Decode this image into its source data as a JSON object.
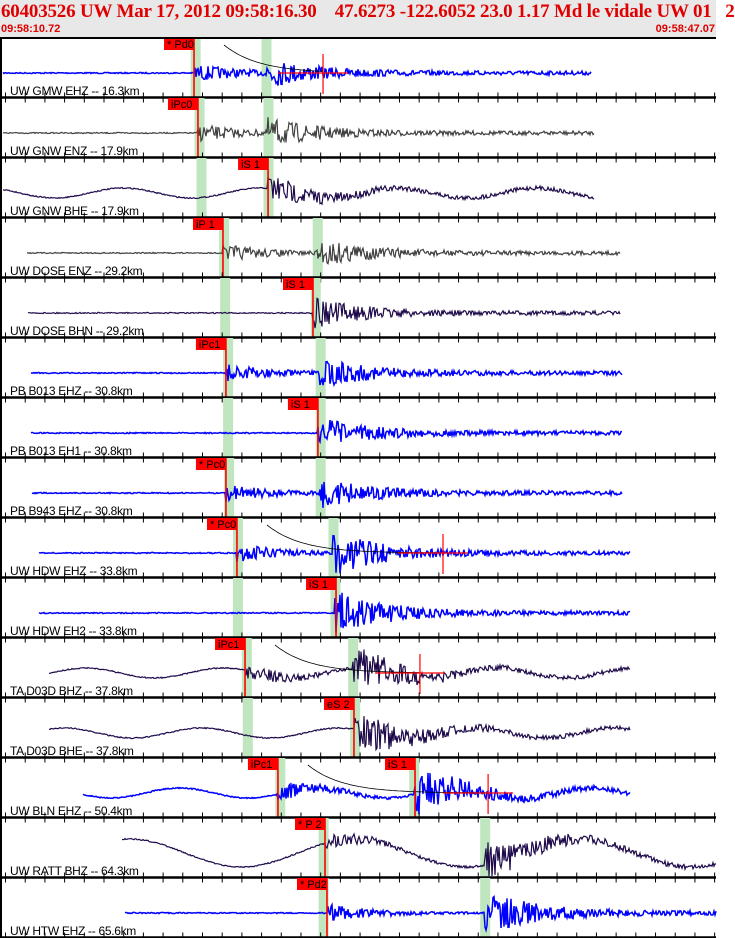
{
  "header": {
    "title": "60403526 UW Mar 17, 2012 09:58:16.30    47.6273 -122.6052 23.0 1.17 Md le vidale UW 01   2",
    "start_time": "09:58:10.72",
    "end_time": "09:58:47.07"
  },
  "colors": {
    "header_text": "#e00000",
    "pick": "#ff0000",
    "window": "#bfe6bf",
    "blue": "#0000ff",
    "purple": "#1e0a4a",
    "gray": "#404040"
  },
  "chart_data": {
    "type": "seismogram",
    "x_axis": "time (seconds past 09:58)",
    "xlim": [
      10.72,
      47.07
    ],
    "tick_interval_s": 1,
    "traces": [
      {
        "label": "UW GMW EHZ -- 16.3km",
        "color": "blue",
        "start": 10.87,
        "end": 40.7,
        "windows": [
          20.6,
          24.2
        ],
        "picks": [
          {
            "label": "* Pd0",
            "t": 20.57
          }
        ],
        "coda": 27.12,
        "lp": 0
      },
      {
        "label": "UW GNW ENZ -- 17.9km",
        "color": "gray",
        "start": 10.87,
        "end": 40.9,
        "windows": [
          20.8,
          24.3
        ],
        "picks": [
          {
            "label": "iPc0",
            "t": 20.77
          }
        ],
        "lp": 0
      },
      {
        "label": "UW GNW BHE -- 17.9km",
        "color": "purple",
        "start": 10.87,
        "end": 40.9,
        "windows": [
          20.9,
          24.3
        ],
        "picks": [
          {
            "label": "iS 1",
            "t": 24.33
          }
        ],
        "lp": 1
      },
      {
        "label": "UW DOSE ENZ -- 29.2km",
        "color": "gray",
        "start": 12.09,
        "end": 42.2,
        "windows": [
          22.05,
          26.8
        ],
        "picks": [
          {
            "label": "iP 1",
            "t": 22.04
          }
        ],
        "lp": 0
      },
      {
        "label": "UW DOSE BHN -- 29.2km",
        "color": "purple",
        "start": 12.14,
        "end": 42.2,
        "windows": [
          22.1,
          26.7
        ],
        "picks": [
          {
            "label": "iS 1",
            "t": 26.61
          }
        ],
        "lp": 0
      },
      {
        "label": "PB B013 EHZ -- 30.8km",
        "color": "blue",
        "start": 12.29,
        "end": 42.3,
        "windows": [
          22.25,
          26.95
        ],
        "picks": [
          {
            "label": "iPc1",
            "t": 22.19
          }
        ],
        "lp": 0
      },
      {
        "label": "PB B013 EH1 -- 30.8km",
        "color": "blue",
        "start": 12.29,
        "end": 42.3,
        "windows": [
          22.25,
          26.95
        ],
        "picks": [
          {
            "label": "iS 1",
            "t": 26.86
          }
        ],
        "lp": 0
      },
      {
        "label": "PB B943 EHZ -- 30.8km",
        "color": "blue",
        "start": 12.34,
        "end": 42.3,
        "windows": [
          22.3,
          26.95
        ],
        "picks": [
          {
            "label": "* Pc0",
            "t": 22.19
          }
        ],
        "lp": 0
      },
      {
        "label": "UW HDW EHZ -- 33.8km",
        "color": "blue",
        "start": 12.7,
        "end": 42.7,
        "windows": [
          22.75,
          27.6
        ],
        "picks": [
          {
            "label": "* Pc0",
            "t": 22.75
          }
        ],
        "coda": 33.21,
        "lp": 0
      },
      {
        "label": "UW HDW EH2 -- 33.8km",
        "color": "blue",
        "start": 12.7,
        "end": 42.7,
        "windows": [
          22.75,
          27.7
        ],
        "picks": [
          {
            "label": "iS 1",
            "t": 27.78
          }
        ],
        "lp": 0
      },
      {
        "label": "TA D03D BHZ -- 37.8km",
        "color": "purple",
        "start": 13.2,
        "end": 42.7,
        "windows": [
          23.2,
          28.6
        ],
        "picks": [
          {
            "label": "iPc1",
            "t": 23.16
          }
        ],
        "coda": 32.04,
        "lp": 1
      },
      {
        "label": "TA D03D BHE -- 37.8km",
        "color": "purple",
        "start": 13.2,
        "end": 42.7,
        "windows": [
          23.25,
          28.7
        ],
        "picks": [
          {
            "label": "eS 2",
            "t": 28.69
          }
        ],
        "lp": 1
      },
      {
        "label": "UW BLN EHZ -- 50.4km",
        "color": "blue",
        "start": 14.93,
        "end": 42.7,
        "windows": [
          24.9,
          31.7
        ],
        "picks": [
          {
            "label": "iPc1",
            "t": 24.83
          },
          {
            "label": "iS 1",
            "t": 31.79
          }
        ],
        "coda": 35.5,
        "lp": 1
      },
      {
        "label": "UW RATT BHZ -- 64.3km",
        "color": "purple",
        "start": 16.91,
        "end": 47.07,
        "windows": [
          27.1,
          35.3
        ],
        "picks": [
          {
            "label": "* P 2",
            "t": 27.22
          }
        ],
        "lp": 2
      },
      {
        "label": "UW HTW EHZ -- 65.6km",
        "color": "blue",
        "start": 17.07,
        "end": 47.07,
        "windows": [
          27.1,
          35.3
        ],
        "picks": [
          {
            "label": "* Pd2",
            "t": 27.32
          }
        ],
        "lp": 0
      }
    ]
  }
}
